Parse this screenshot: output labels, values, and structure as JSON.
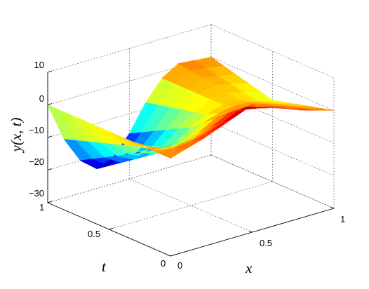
{
  "chart_data": {
    "type": "surface",
    "title": "",
    "xlabel": "x",
    "ylabel": "t",
    "zlabel": "y(x, t)",
    "xlim": [
      0,
      1
    ],
    "ylim": [
      0,
      1
    ],
    "zlim": [
      -30,
      10
    ],
    "x_ticks": [
      "0",
      "0.5",
      "1"
    ],
    "t_ticks": [
      "0",
      "0.5",
      "1"
    ],
    "z_ticks": [
      "10",
      "0",
      "−10",
      "−20",
      "−30"
    ],
    "grid": true,
    "colormap": "jet",
    "x": [
      0,
      0.1,
      0.2,
      0.3,
      0.4,
      0.5,
      0.6,
      0.7,
      0.8,
      0.9,
      1.0
    ],
    "t": [
      0,
      0.1,
      0.2,
      0.3,
      0.4,
      0.5,
      0.6,
      0.7,
      0.8,
      0.9,
      1.0
    ],
    "z_edge_t0": [
      0,
      1.5,
      3,
      5,
      7,
      9,
      7,
      5,
      3,
      1.5,
      0
    ],
    "z_edge_t1": [
      0,
      -12,
      -20,
      -24,
      -22,
      -16,
      -8,
      -2,
      1,
      0.5,
      0
    ],
    "z_edge_x1": [
      0,
      -1,
      -2,
      -3,
      -4,
      -5,
      -4,
      -3,
      -2,
      -1,
      0
    ]
  }
}
